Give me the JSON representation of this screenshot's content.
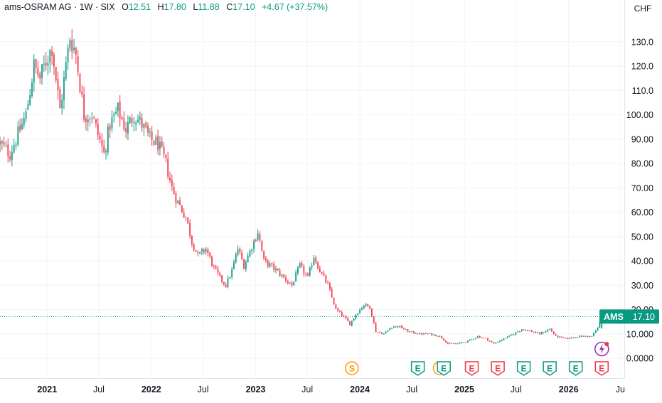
{
  "legend": {
    "symbol": "ams-OSRAM AG",
    "interval": "1W",
    "exchange": "SIX",
    "open_label": "O",
    "open": "12.51",
    "high_label": "H",
    "high": "17.80",
    "low_label": "L",
    "low": "11.88",
    "close_label": "C",
    "close": "17.10",
    "change": "+4.67 (+37.57%)"
  },
  "currency": "CHF",
  "price_label": {
    "ticker": "AMS",
    "value": "17.10"
  },
  "colors": {
    "up": "#089981",
    "down": "#f23645",
    "split": "#ff9800",
    "earnings_up": "#089981",
    "earnings_down": "#f23645",
    "dividend": "#9c27b0"
  },
  "chart_data": {
    "type": "candlestick",
    "interval": "1W",
    "ylim": [
      -5,
      140
    ],
    "yticks": [
      "0.0000",
      "10.000",
      "20.00",
      "30.00",
      "40.00",
      "50.00",
      "60.00",
      "70.00",
      "80.00",
      "90.00",
      "100.00",
      "110.0",
      "120.0",
      "130.0"
    ],
    "ytick_values": [
      0,
      10,
      20,
      30,
      40,
      50,
      60,
      70,
      80,
      90,
      100,
      110,
      120,
      130
    ],
    "xticks": [
      "2021",
      "Jul",
      "2022",
      "Jul",
      "2023",
      "Jul",
      "2024",
      "Jul",
      "2025",
      "Jul",
      "2026",
      "Ju"
    ],
    "xtick_dates": [
      "2021-01-01",
      "2021-07-01",
      "2022-01-01",
      "2022-07-01",
      "2023-01-01",
      "2023-07-01",
      "2024-01-01",
      "2024-07-01",
      "2025-01-01",
      "2025-07-01",
      "2026-01-01",
      "2026-07-01"
    ],
    "xlim": [
      "2020-07-20",
      "2026-07-15"
    ],
    "last_price": 17.1,
    "anchors": [
      [
        "2020-07-20",
        88
      ],
      [
        "2020-08-24",
        84
      ],
      [
        "2020-09-21",
        92
      ],
      [
        "2020-10-19",
        100
      ],
      [
        "2020-11-16",
        120
      ],
      [
        "2020-12-07",
        115
      ],
      [
        "2020-12-28",
        122
      ],
      [
        "2021-01-18",
        128
      ],
      [
        "2021-02-15",
        102
      ],
      [
        "2021-03-08",
        120
      ],
      [
        "2021-03-22",
        132
      ],
      [
        "2021-04-12",
        125
      ],
      [
        "2021-05-10",
        100
      ],
      [
        "2021-06-07",
        100
      ],
      [
        "2021-06-28",
        92
      ],
      [
        "2021-07-19",
        84
      ],
      [
        "2021-08-09",
        96
      ],
      [
        "2021-09-06",
        102
      ],
      [
        "2021-10-04",
        94
      ],
      [
        "2021-11-01",
        100
      ],
      [
        "2021-11-29",
        96
      ],
      [
        "2021-12-27",
        90
      ],
      [
        "2022-01-24",
        88
      ],
      [
        "2022-02-21",
        80
      ],
      [
        "2022-03-14",
        70
      ],
      [
        "2022-04-04",
        64
      ],
      [
        "2022-05-02",
        58
      ],
      [
        "2022-05-23",
        48
      ],
      [
        "2022-06-13",
        42
      ],
      [
        "2022-07-11",
        45
      ],
      [
        "2022-08-08",
        37
      ],
      [
        "2022-08-29",
        33
      ],
      [
        "2022-09-19",
        30
      ],
      [
        "2022-10-10",
        36
      ],
      [
        "2022-10-31",
        45
      ],
      [
        "2022-11-21",
        38
      ],
      [
        "2022-12-19",
        46
      ],
      [
        "2023-01-09",
        52
      ],
      [
        "2023-01-30",
        40
      ],
      [
        "2023-03-06",
        37
      ],
      [
        "2023-04-10",
        33
      ],
      [
        "2023-05-08",
        30
      ],
      [
        "2023-06-05",
        38
      ],
      [
        "2023-07-03",
        33
      ],
      [
        "2023-07-24",
        42
      ],
      [
        "2023-08-14",
        36
      ],
      [
        "2023-09-11",
        30
      ],
      [
        "2023-10-09",
        20
      ],
      [
        "2023-11-06",
        17
      ],
      [
        "2023-11-27",
        14
      ],
      [
        "2023-12-18",
        18
      ],
      [
        "2024-01-15",
        22
      ],
      [
        "2024-02-05",
        21
      ],
      [
        "2024-02-26",
        11
      ],
      [
        "2024-03-25",
        10
      ],
      [
        "2024-04-22",
        13
      ],
      [
        "2024-05-20",
        13
      ],
      [
        "2024-06-17",
        11
      ],
      [
        "2024-07-29",
        10
      ],
      [
        "2024-09-02",
        10
      ],
      [
        "2024-10-07",
        9
      ],
      [
        "2024-11-04",
        6
      ],
      [
        "2024-12-09",
        6
      ],
      [
        "2025-01-13",
        7
      ],
      [
        "2025-02-17",
        9
      ],
      [
        "2025-03-17",
        8
      ],
      [
        "2025-04-14",
        6
      ],
      [
        "2025-05-19",
        8
      ],
      [
        "2025-06-23",
        10
      ],
      [
        "2025-07-21",
        12
      ],
      [
        "2025-08-25",
        11
      ],
      [
        "2025-09-22",
        10
      ],
      [
        "2025-10-27",
        12
      ],
      [
        "2025-11-17",
        9
      ],
      [
        "2025-12-22",
        8
      ],
      [
        "2026-02-09",
        9
      ],
      [
        "2026-03-23",
        9
      ],
      [
        "2026-04-13",
        12.5
      ],
      [
        "2026-04-27",
        17.1
      ]
    ]
  },
  "events": [
    {
      "type": "S",
      "date": "2023-12-04",
      "color": "split"
    },
    {
      "type": "E",
      "date": "2024-07-22",
      "color": "earnings_up"
    },
    {
      "type": "S",
      "date": "2024-10-07",
      "color": "split"
    },
    {
      "type": "E",
      "date": "2024-10-21",
      "color": "earnings_up"
    },
    {
      "type": "E",
      "date": "2025-01-27",
      "color": "earnings_down"
    },
    {
      "type": "E",
      "date": "2025-04-28",
      "color": "earnings_down"
    },
    {
      "type": "E",
      "date": "2025-07-28",
      "color": "earnings_up"
    },
    {
      "type": "E",
      "date": "2025-10-27",
      "color": "earnings_up"
    },
    {
      "type": "E",
      "date": "2026-01-26",
      "color": "earnings_up"
    },
    {
      "type": "E",
      "date": "2026-04-27",
      "color": "earnings_down"
    }
  ]
}
